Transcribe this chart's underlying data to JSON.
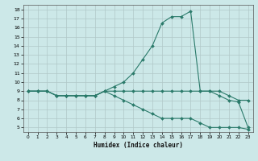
{
  "xlabel": "Humidex (Indice chaleur)",
  "background_color": "#cce8e8",
  "grid_color": "#b0c8c8",
  "line_color": "#2a7a6a",
  "xlim": [
    -0.5,
    23.5
  ],
  "ylim": [
    4.5,
    18.5
  ],
  "xticks": [
    0,
    1,
    2,
    3,
    4,
    5,
    6,
    7,
    8,
    9,
    10,
    11,
    12,
    13,
    14,
    15,
    16,
    17,
    18,
    19,
    20,
    21,
    22,
    23
  ],
  "yticks": [
    5,
    6,
    7,
    8,
    9,
    10,
    11,
    12,
    13,
    14,
    15,
    16,
    17,
    18
  ],
  "line1_x": [
    0,
    1,
    2,
    3,
    4,
    5,
    6,
    7,
    8,
    9,
    10,
    11,
    12,
    13,
    14,
    15,
    16,
    17,
    18,
    19,
    20,
    21,
    22,
    23
  ],
  "line1_y": [
    9,
    9,
    9,
    8.5,
    8.5,
    8.5,
    8.5,
    8.5,
    9,
    9.5,
    10,
    11,
    12.5,
    14,
    16.5,
    17.2,
    17.2,
    17.8,
    9,
    9,
    8.5,
    8,
    7.8,
    5
  ],
  "line2_x": [
    0,
    1,
    2,
    3,
    4,
    5,
    6,
    7,
    8,
    9,
    10,
    11,
    12,
    13,
    14,
    15,
    16,
    17,
    18,
    19,
    20,
    21,
    22,
    23
  ],
  "line2_y": [
    9,
    9,
    9,
    8.5,
    8.5,
    8.5,
    8.5,
    8.5,
    9,
    9,
    9,
    9,
    9,
    9,
    9,
    9,
    9,
    9,
    9,
    9,
    9,
    8.5,
    8,
    8
  ],
  "line3_x": [
    0,
    1,
    2,
    3,
    4,
    5,
    6,
    7,
    8,
    9,
    10,
    11,
    12,
    13,
    14,
    15,
    16,
    17,
    18,
    19,
    20,
    21,
    22,
    23
  ],
  "line3_y": [
    9,
    9,
    9,
    8.5,
    8.5,
    8.5,
    8.5,
    8.5,
    9,
    8.5,
    8,
    7.5,
    7,
    6.5,
    6,
    6,
    6,
    6,
    5.5,
    5,
    5,
    5,
    5,
    4.8
  ]
}
